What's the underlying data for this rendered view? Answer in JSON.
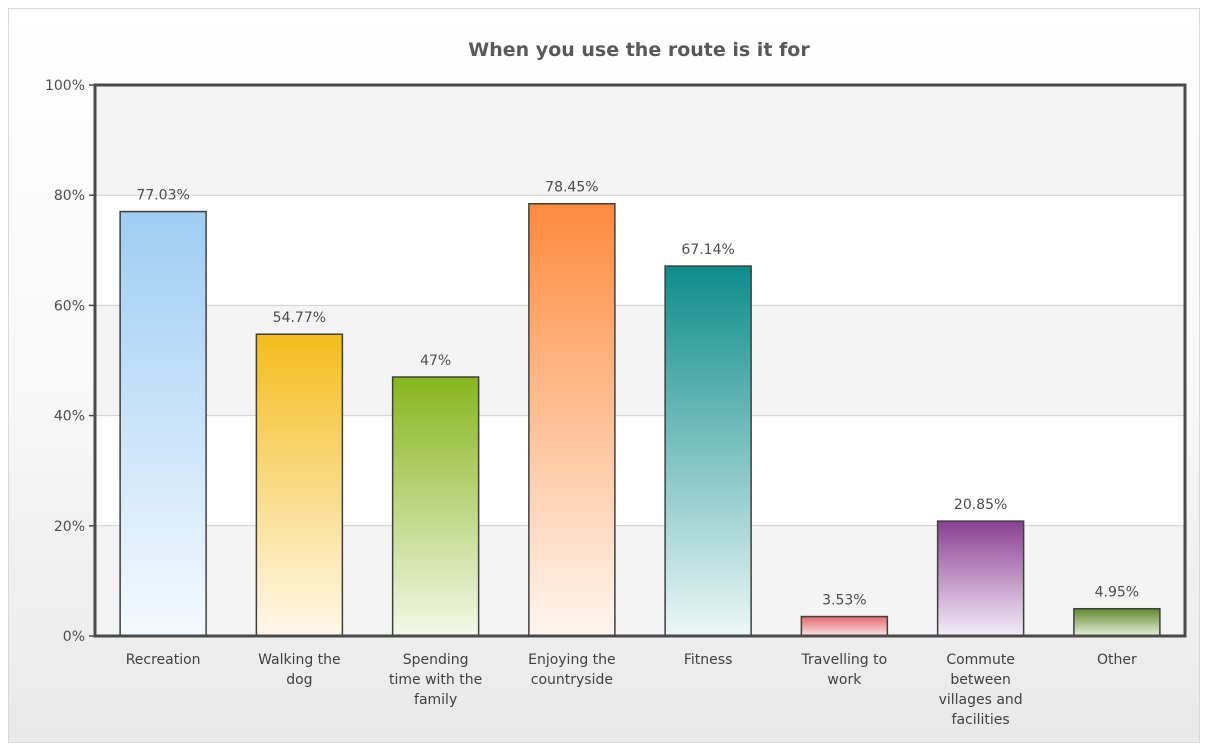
{
  "chart_data": {
    "type": "bar",
    "title": "When you use the route is it for",
    "xlabel": "",
    "ylabel": "",
    "ylim": [
      0,
      100
    ],
    "y_ticks": [
      {
        "value": 0,
        "label": "0%"
      },
      {
        "value": 20,
        "label": "20%"
      },
      {
        "value": 40,
        "label": "40%"
      },
      {
        "value": 60,
        "label": "60%"
      },
      {
        "value": 80,
        "label": "80%"
      },
      {
        "value": 100,
        "label": "100%"
      }
    ],
    "grid": true,
    "legend": "none",
    "categories": [
      [
        "Recreation"
      ],
      [
        "Walking the",
        "dog"
      ],
      [
        "Spending",
        "time with the",
        "family"
      ],
      [
        "Enjoying the",
        "countryside"
      ],
      [
        "Fitness"
      ],
      [
        "Travelling to",
        "work"
      ],
      [
        "Commute",
        "between",
        "villages and",
        "facilities"
      ],
      [
        "Other"
      ]
    ],
    "values": [
      77.03,
      54.77,
      47,
      78.45,
      67.14,
      3.53,
      20.85,
      4.95
    ],
    "value_labels": [
      "77.03%",
      "54.77%",
      "47%",
      "78.45%",
      "67.14%",
      "3.53%",
      "20.85%",
      "4.95%"
    ],
    "bar_colors": [
      {
        "top": "#9fcdf3",
        "bottom": "#f4faff"
      },
      {
        "top": "#f4bc1c",
        "bottom": "#fff9ec"
      },
      {
        "top": "#87b61e",
        "bottom": "#f3f8e8"
      },
      {
        "top": "#ff8a3d",
        "bottom": "#fff6f0"
      },
      {
        "top": "#0d8d8b",
        "bottom": "#ecf7f7"
      },
      {
        "top": "#e4676b",
        "bottom": "#fbe6e7"
      },
      {
        "top": "#8a3f93",
        "bottom": "#f5eef7"
      },
      {
        "top": "#5e8a2c",
        "bottom": "#e8f0de"
      }
    ]
  }
}
